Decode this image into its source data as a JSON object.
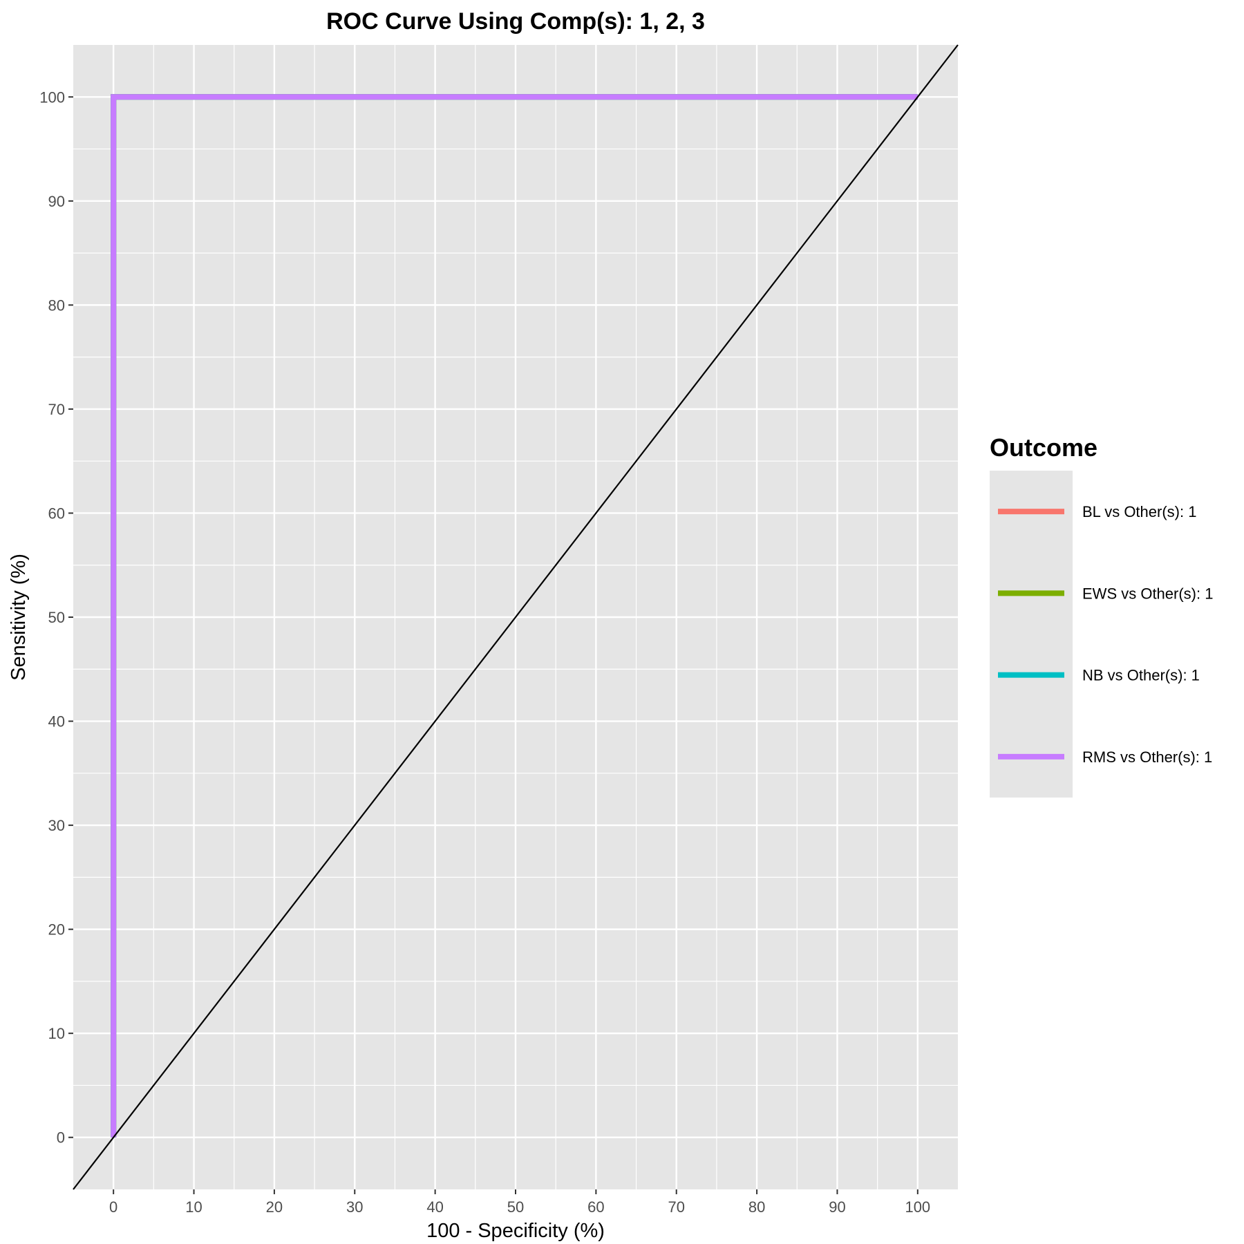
{
  "chart_data": {
    "type": "line",
    "title": "ROC Curve Using Comp(s): 1, 2, 3",
    "xlabel": "100 - Specificity (%)",
    "ylabel": "Sensitivity (%)",
    "xlim": [
      -5,
      105
    ],
    "ylim": [
      -5,
      105
    ],
    "xticks": [
      0,
      10,
      20,
      30,
      40,
      50,
      60,
      70,
      80,
      90,
      100
    ],
    "yticks": [
      0,
      10,
      20,
      30,
      40,
      50,
      60,
      70,
      80,
      90,
      100
    ],
    "grid": true,
    "legend": {
      "title": "Outcome",
      "placement": "right"
    },
    "reference_line": {
      "type": "diagonal",
      "color": "#000000",
      "x": [
        -5,
        105
      ],
      "y": [
        -5,
        105
      ]
    },
    "series": [
      {
        "name": "BL vs Other(s): 1",
        "color": "#F8766D",
        "x": [
          0,
          0,
          100
        ],
        "y": [
          0,
          100,
          100
        ]
      },
      {
        "name": "EWS vs Other(s): 1",
        "color": "#7CAE00",
        "x": [
          0,
          0,
          100
        ],
        "y": [
          0,
          100,
          100
        ]
      },
      {
        "name": "NB vs Other(s): 1",
        "color": "#00BFC4",
        "x": [
          0,
          0,
          100
        ],
        "y": [
          0,
          100,
          100
        ]
      },
      {
        "name": "RMS vs Other(s): 1",
        "color": "#C77CFF",
        "x": [
          0,
          0,
          100
        ],
        "y": [
          0,
          100,
          100
        ]
      }
    ]
  }
}
